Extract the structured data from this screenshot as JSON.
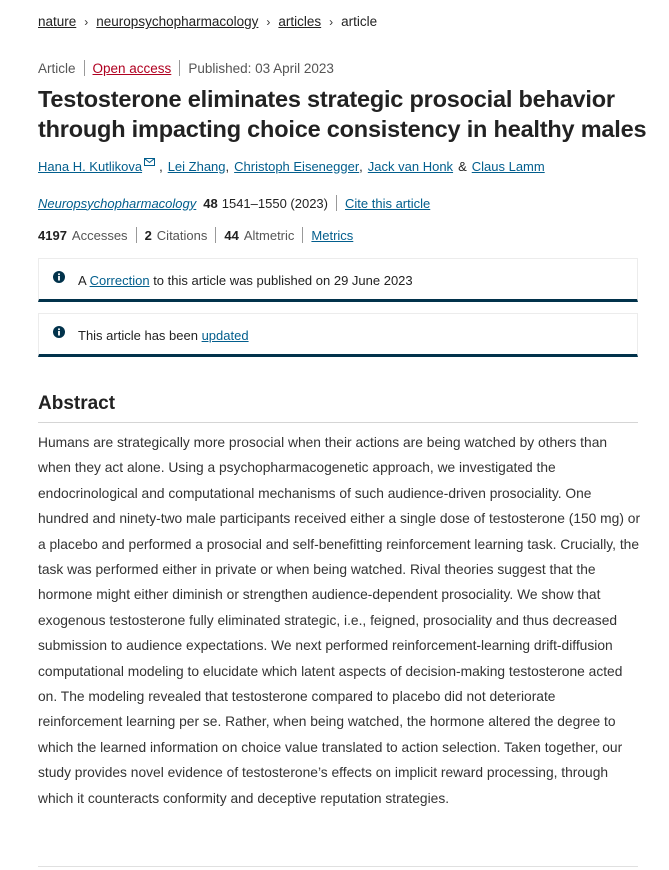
{
  "breadcrumb": {
    "items": [
      "nature",
      "neuropsychopharmacology",
      "articles"
    ],
    "current": "article",
    "separator": "›"
  },
  "meta": {
    "type": "Article",
    "access": "Open access",
    "published": "Published: 03 April 2023"
  },
  "title": "Testosterone eliminates strategic prosocial behavior through impacting choice consistency in healthy males",
  "authors": {
    "names": [
      "Hana H. Kutlikova",
      "Lei Zhang",
      "Christoph Eisenegger",
      "Jack van Honk",
      "Claus Lamm"
    ],
    "amp": "&",
    "comma": ","
  },
  "citation": {
    "journal": "Neuropsychopharmacology",
    "volume": "48",
    "pages": "1541–1550 (2023)",
    "cite_link": "Cite this article"
  },
  "metrics": {
    "accesses_value": "4197",
    "accesses_label": "Accesses",
    "citations_value": "2",
    "citations_label": "Citations",
    "altmetric_value": "44",
    "altmetric_label": "Altmetric",
    "metrics_link": "Metrics"
  },
  "notices": {
    "correction": {
      "prefix": "A",
      "link": "Correction",
      "suffix": "to this article was published on 29 June 2023"
    },
    "updated": {
      "prefix": "This article has been",
      "link": "updated"
    }
  },
  "abstract": {
    "heading": "Abstract",
    "text": "Humans are strategically more prosocial when their actions are being watched by others than when they act alone. Using a psychopharmacogenetic approach, we investigated the endocrinological and computational mechanisms of such audience-driven prosociality. One hundred and ninety-two male participants received either a single dose of testosterone (150 mg) or a placebo and performed a prosocial and self-benefitting reinforcement learning task. Crucially, the task was performed either in private or when being watched. Rival theories suggest that the hormone might either diminish or strengthen audience-dependent prosociality. We show that exogenous testosterone fully eliminated strategic, i.e., feigned, prosociality and thus decreased submission to audience expectations. We next performed reinforcement-learning drift-diffusion computational modeling to elucidate which latent aspects of decision-making testosterone acted on. The modeling revealed that testosterone compared to placebo did not deteriorate reinforcement learning per se. Rather, when being watched, the hormone altered the degree to which the learned information on choice value translated to action selection. Taken together, our study provides novel evidence of testosterone’s effects on implicit reward processing, through which it counteracts conformity and deceptive reputation strategies."
  },
  "colors": {
    "link": "#025e8d",
    "open_access": "#b00020",
    "notice_border": "#01324b"
  }
}
